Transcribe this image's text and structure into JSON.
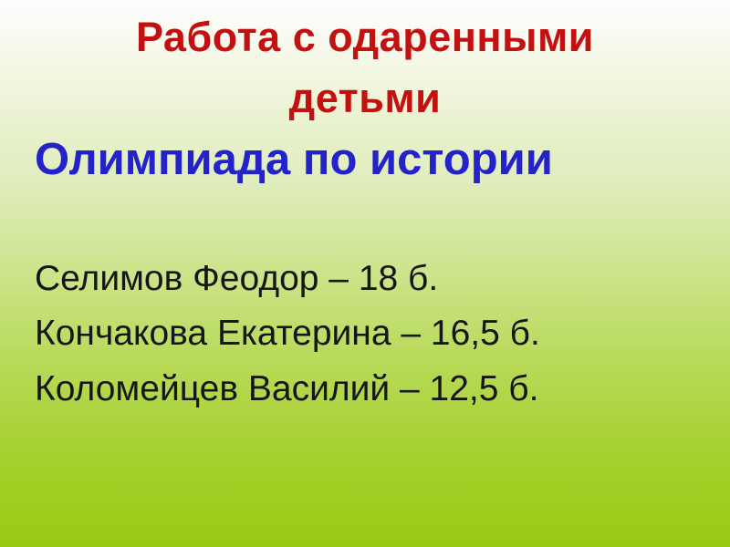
{
  "slide": {
    "title_lines": [
      "Работа с одаренными",
      "детьми"
    ],
    "subtitle": "Олимпиада по истории",
    "results": [
      "Селимов Феодор – 18 б.",
      "Кончакова Екатерина – 16,5 б.",
      "Коломейцев Василий – 12,5 б."
    ],
    "colors": {
      "title_color": "#c31111",
      "subtitle_color": "#2323c9",
      "body_color": "#161616",
      "bg_top": "#fefefe",
      "bg_bottom": "#9aca14"
    }
  }
}
